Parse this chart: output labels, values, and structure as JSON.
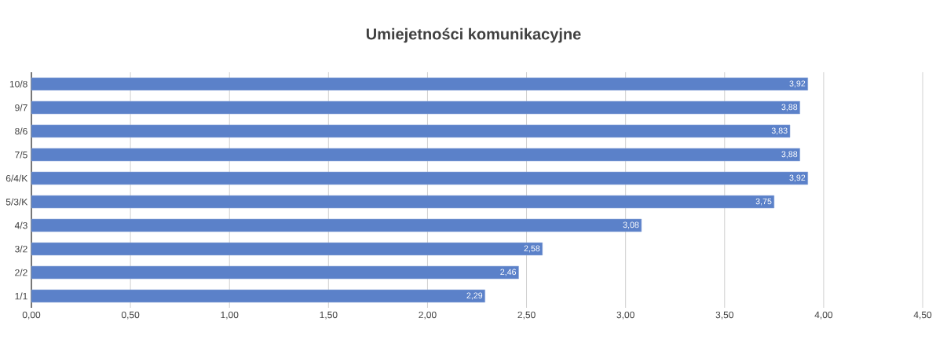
{
  "chart_data": {
    "type": "bar",
    "orientation": "horizontal",
    "title": "Umiejetności komunikacyjne",
    "categories": [
      "10/8",
      "9/7",
      "8/6",
      "7/5",
      "6/4/K",
      "5/3/K",
      "4/3",
      "3/2",
      "2/2",
      "1/1"
    ],
    "values": [
      3.92,
      3.88,
      3.83,
      3.88,
      3.92,
      3.75,
      3.08,
      2.58,
      2.46,
      2.29
    ],
    "value_labels": [
      "3,92",
      "3,88",
      "3,83",
      "3,88",
      "3,92",
      "3,75",
      "3,08",
      "2,58",
      "2,46",
      "2,29"
    ],
    "color": "#5b81c9",
    "xlim": [
      0,
      4.5
    ],
    "xticks": [
      {
        "value": 0,
        "label": "0,00"
      },
      {
        "value": 0.5,
        "label": "0,50"
      },
      {
        "value": 1,
        "label": "1,00"
      },
      {
        "value": 1.5,
        "label": "1,50"
      },
      {
        "value": 2,
        "label": "2,00"
      },
      {
        "value": 2.5,
        "label": "2,50"
      },
      {
        "value": 3,
        "label": "3,00"
      },
      {
        "value": 3.5,
        "label": "3,50"
      },
      {
        "value": 4,
        "label": "4,00"
      },
      {
        "value": 4.5,
        "label": "4,50"
      }
    ],
    "grid": "x"
  }
}
